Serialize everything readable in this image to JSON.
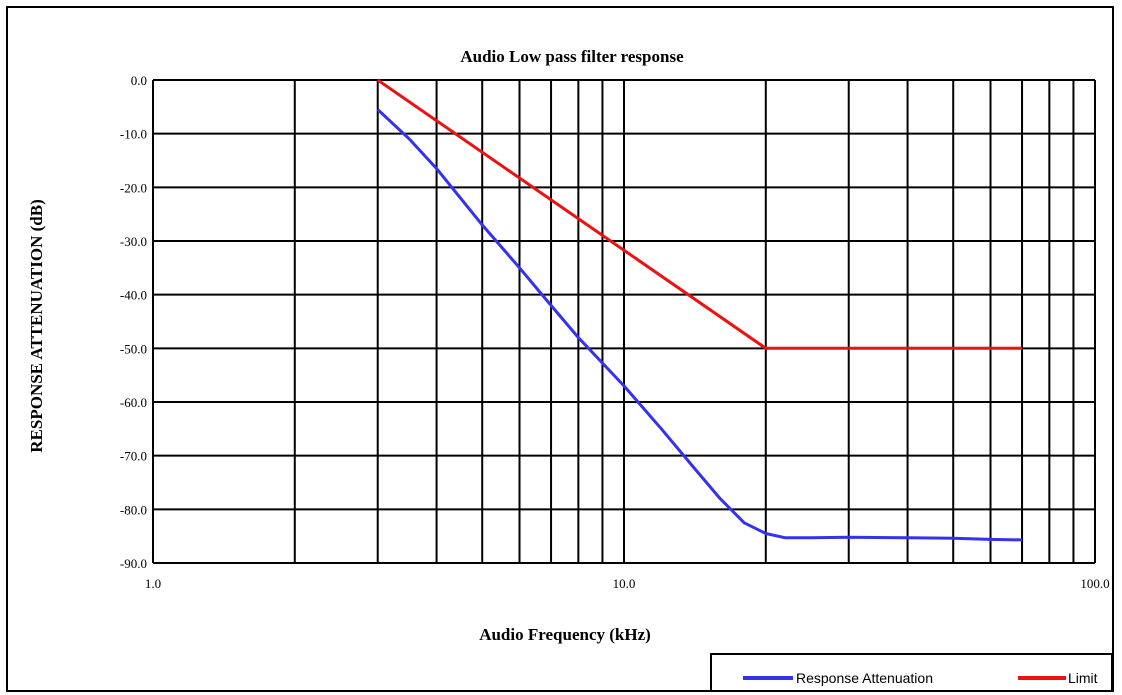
{
  "chart_data": {
    "type": "line",
    "title": "Audio Low pass filter response",
    "xlabel": "Audio Frequency (kHz)",
    "ylabel": "RESPONSE ATTENUATION (dB)",
    "x_scale": "log",
    "xlim": [
      1,
      100
    ],
    "ylim": [
      -90,
      0
    ],
    "x_ticks": [
      "1.0",
      "10.0",
      "100.0"
    ],
    "y_ticks": [
      "0.0",
      "-10.0",
      "-20.0",
      "-30.0",
      "-40.0",
      "-50.0",
      "-60.0",
      "-70.0",
      "-80.0",
      "-90.0"
    ],
    "grid": true,
    "legend_position": "bottom-right",
    "series": [
      {
        "name": "Response Attenuation",
        "color": "#3333ee",
        "x": [
          3.0,
          3.5,
          4.0,
          5.0,
          6.0,
          7.0,
          8.0,
          10.0,
          12.0,
          14.0,
          16.0,
          18.0,
          20.0,
          22.0,
          25.0,
          30.0,
          40.0,
          50.0,
          60.0,
          70.0
        ],
        "y": [
          -5.5,
          -11,
          -16.5,
          -27,
          -35,
          -42,
          -48,
          -57,
          -65,
          -72,
          -78,
          -82.5,
          -84.5,
          -85.3,
          -85.3,
          -85.2,
          -85.3,
          -85.4,
          -85.6,
          -85.7
        ]
      },
      {
        "name": "Limit",
        "color": "#ee1111",
        "x": [
          3.0,
          20.0,
          70.0
        ],
        "y": [
          0,
          -50,
          -50
        ]
      }
    ]
  }
}
